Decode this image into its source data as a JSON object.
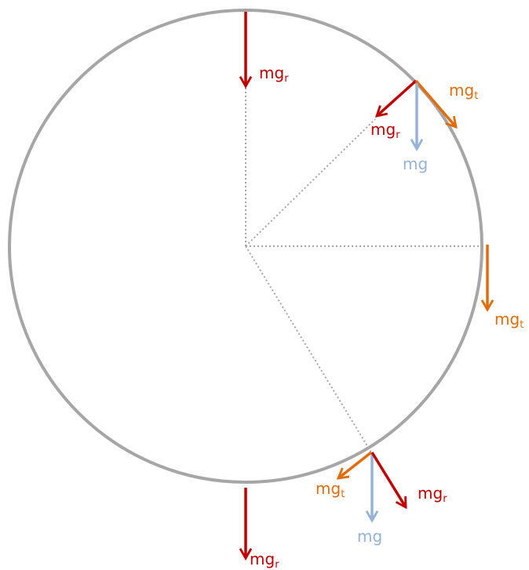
{
  "labels": [
    {
      "main": "mg",
      "sub": "r"
    },
    {
      "main": "mg",
      "sub": "r"
    },
    {
      "main": "mg",
      "sub": "t"
    },
    {
      "main": "mg"
    },
    {
      "main": "mg",
      "sub": "t"
    },
    {
      "main": "mg",
      "sub": "t"
    },
    {
      "main": "mg"
    },
    {
      "main": "mg",
      "sub": "r"
    },
    {
      "main": "mg",
      "sub": "r"
    }
  ]
}
